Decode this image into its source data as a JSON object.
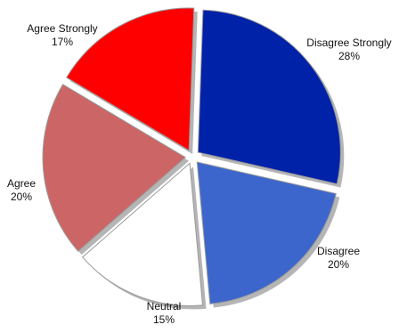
{
  "chart_data": {
    "type": "pie",
    "title": "",
    "slices": [
      {
        "label": "Disagree Strongly",
        "pct_label": "28%",
        "value": 28,
        "color": "#0022a8"
      },
      {
        "label": "Disagree",
        "pct_label": "20%",
        "value": 20,
        "color": "#3d66cc"
      },
      {
        "label": "Neutral",
        "pct_label": "15%",
        "value": 15,
        "color": "#ffffff"
      },
      {
        "label": "Agree",
        "pct_label": "20%",
        "value": 20,
        "color": "#cc6666"
      },
      {
        "label": "Agree Strongly",
        "pct_label": "17%",
        "value": 17,
        "color": "#ff0000"
      }
    ],
    "exploded": true,
    "shadow_color": "#b5b5b5",
    "stroke_color": "#9a9a9a"
  }
}
